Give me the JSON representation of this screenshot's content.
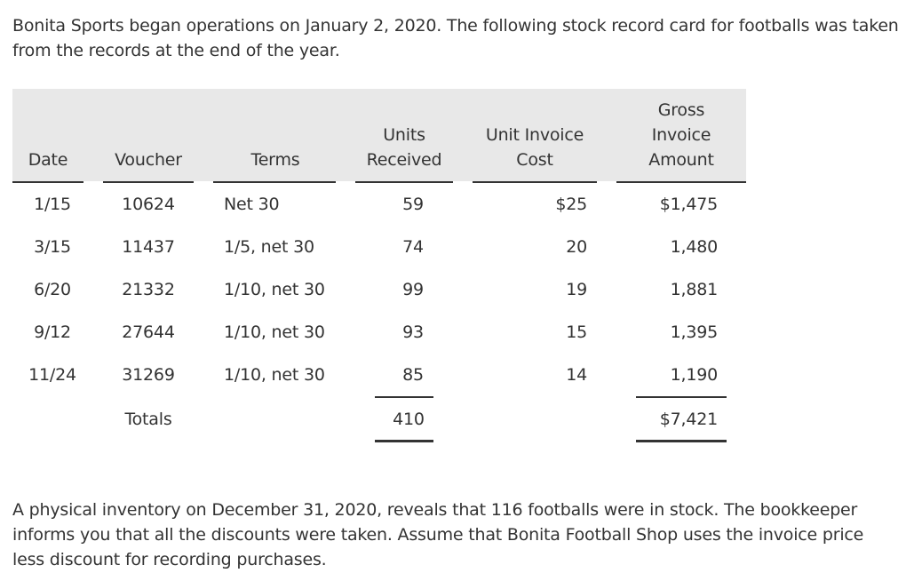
{
  "intro_text": "Bonita Sports began operations on January 2, 2020. The following stock record card for footballs was taken from the records at the end of the year.",
  "outro_text": "A physical inventory on December 31, 2020, reveals that 116 footballs were in stock. The bookkeeper informs you that all the discounts were taken. Assume that Bonita Football Shop uses the invoice price less discount for recording purchases.",
  "table": {
    "headers": {
      "date": "Date",
      "voucher": "Voucher",
      "terms": "Terms",
      "units_received_1": "Units",
      "units_received_2": "Received",
      "unit_cost_1": "Unit Invoice",
      "unit_cost_2": "Cost",
      "gross_1": "Gross",
      "gross_2": "Invoice",
      "gross_3": "Amount"
    },
    "rows": [
      {
        "date": "1/15",
        "voucher": "10624",
        "terms": "Net 30",
        "units": "59",
        "unit_cost": "$25",
        "gross": "$1,475"
      },
      {
        "date": "3/15",
        "voucher": "11437",
        "terms": "1/5, net 30",
        "units": "74",
        "unit_cost": "20",
        "gross": "1,480"
      },
      {
        "date": "6/20",
        "voucher": "21332",
        "terms": "1/10, net 30",
        "units": "99",
        "unit_cost": "19",
        "gross": "1,881"
      },
      {
        "date": "9/12",
        "voucher": "27644",
        "terms": "1/10, net 30",
        "units": "93",
        "unit_cost": "15",
        "gross": "1,395"
      },
      {
        "date": "11/24",
        "voucher": "31269",
        "terms": "1/10, net 30",
        "units": "85",
        "unit_cost": "14",
        "gross": "1,190"
      }
    ],
    "totals": {
      "label": "Totals",
      "units": "410",
      "gross": "$7,421"
    }
  }
}
